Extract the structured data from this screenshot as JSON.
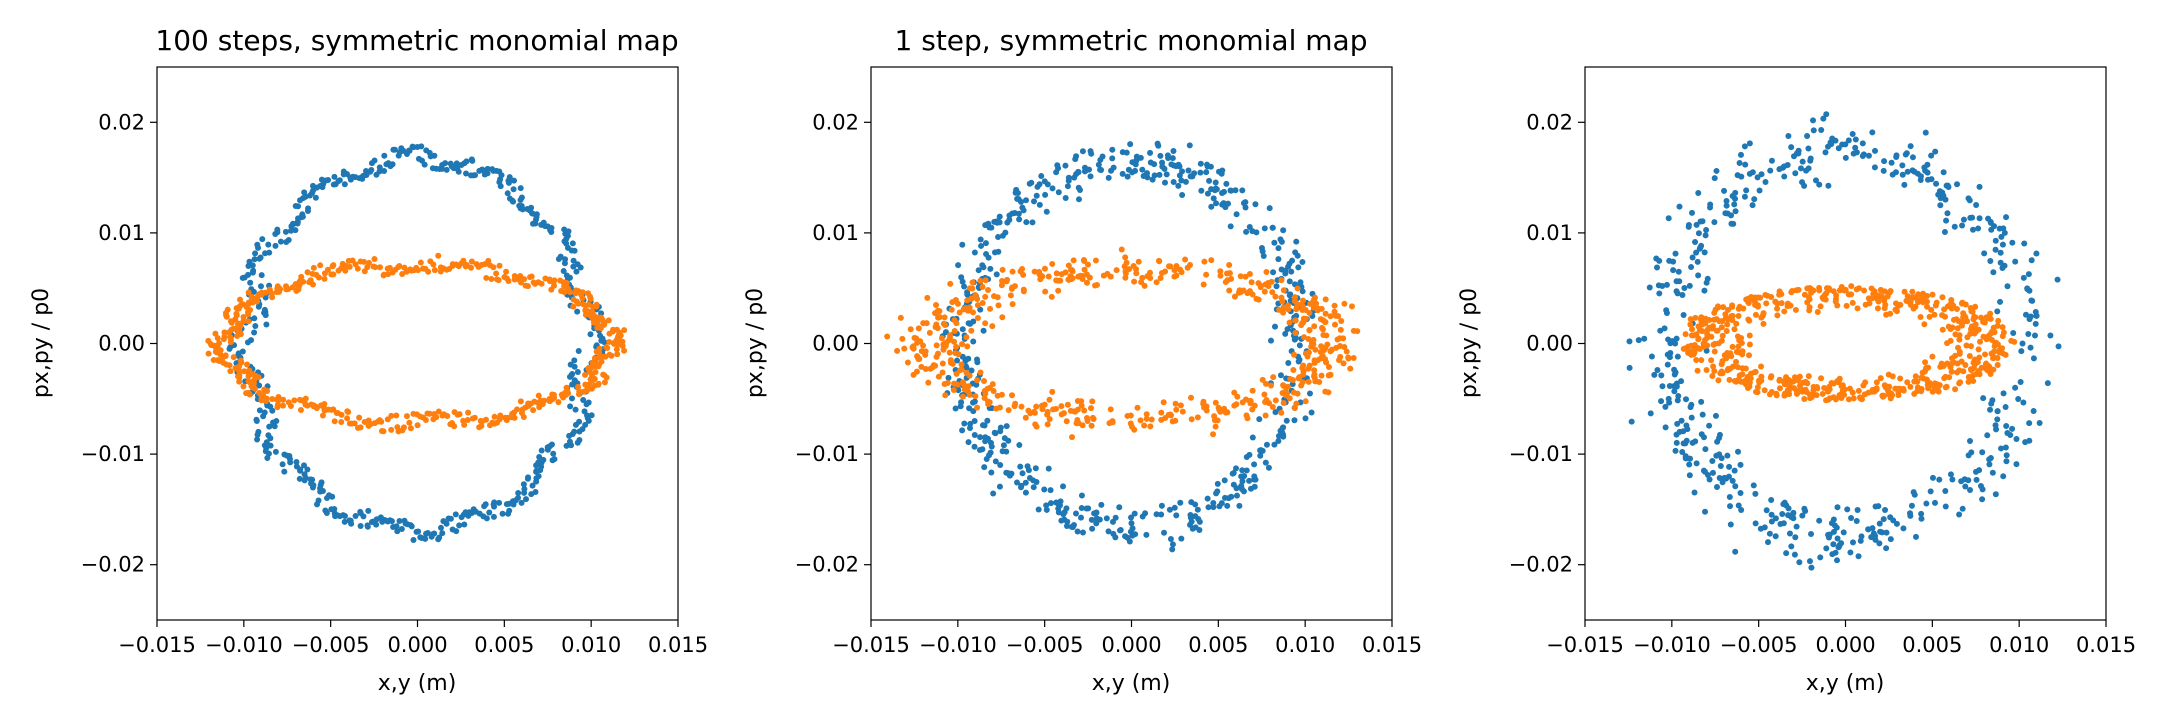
{
  "chart_data": [
    {
      "type": "scatter",
      "title": "100 steps, symmetric monomial map",
      "xlabel": "x,y (m)",
      "ylabel": "px,py / p0",
      "xlim": [
        -0.015,
        0.015
      ],
      "ylim": [
        -0.025,
        0.025
      ],
      "x_ticks": [
        "−0.015",
        "−0.010",
        "−0.005",
        "0.000",
        "0.005",
        "0.010",
        "0.015"
      ],
      "y_ticks": [
        "−0.02",
        "−0.01",
        "0.00",
        "0.01",
        "0.02"
      ],
      "series": [
        {
          "color": "#1f77b4",
          "shape": "wavy-ellipse",
          "rx": 0.0098,
          "ry": 0.0168,
          "width": 0.0006,
          "wiggle": 0.0008,
          "lobes": 12,
          "points": 520
        },
        {
          "color": "#ff7f0e",
          "shape": "wavy-ellipse",
          "rx": 0.0112,
          "ry": 0.0071,
          "width": 0.0008,
          "wiggle": 0.0006,
          "lobes": 10,
          "points": 520
        }
      ]
    },
    {
      "type": "scatter",
      "title": "1 step, symmetric monomial map",
      "xlabel": "x,y (m)",
      "ylabel": "px,py / p0",
      "xlim": [
        -0.015,
        0.015
      ],
      "ylim": [
        -0.025,
        0.025
      ],
      "x_ticks": [
        "−0.015",
        "−0.010",
        "−0.005",
        "0.000",
        "0.005",
        "0.010",
        "0.015"
      ],
      "y_ticks": [
        "−0.02",
        "−0.01",
        "0.00",
        "0.01",
        "0.02"
      ],
      "series": [
        {
          "color": "#1f77b4",
          "shape": "noisy-ellipse",
          "rx": 0.0097,
          "ry": 0.0165,
          "width": 0.0008,
          "points": 560
        },
        {
          "color": "#ff7f0e",
          "shape": "noisy-ellipse",
          "rx": 0.0115,
          "ry": 0.0068,
          "width": 0.0009,
          "points": 560
        }
      ]
    },
    {
      "type": "scatter",
      "title": "",
      "xlabel": "x,y (m)",
      "ylabel": "px,py / p0",
      "xlim": [
        -0.015,
        0.015
      ],
      "ylim": [
        -0.025,
        0.025
      ],
      "x_ticks": [
        "−0.015",
        "−0.010",
        "−0.005",
        "0.000",
        "0.005",
        "0.010",
        "0.015"
      ],
      "y_ticks": [
        "−0.02",
        "−0.01",
        "0.00",
        "0.01",
        "0.02"
      ],
      "series": [
        {
          "color": "#1f77b4",
          "shape": "noisy-ellipse",
          "rx": 0.0102,
          "ry": 0.0175,
          "width": 0.0012,
          "points": 520
        },
        {
          "color": "#ff7f0e",
          "shape": "ring",
          "rx": 0.0095,
          "ry": 0.0052,
          "inner": 0.55,
          "points": 620
        }
      ]
    }
  ]
}
